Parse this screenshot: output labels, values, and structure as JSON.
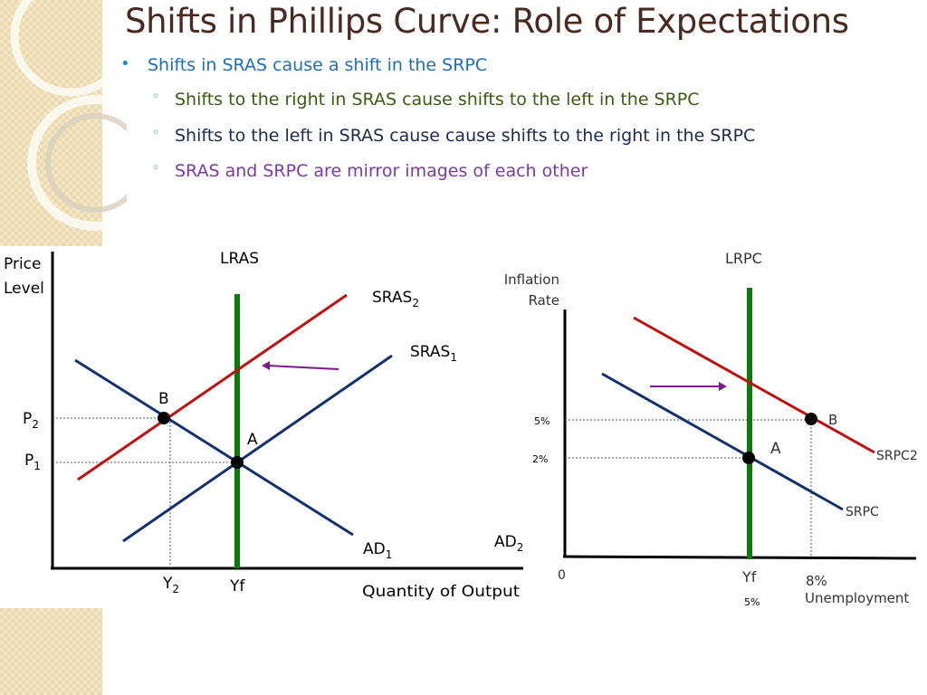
{
  "title": "Shifts in Phillips Curve: Role of Expectations",
  "bullets": {
    "main": "Shifts in SRAS cause a shift in the SRPC",
    "sub": [
      {
        "text": "Shifts to the right in SRAS cause shifts to the left in the SRPC",
        "color": "#3d5a12"
      },
      {
        "text": "Shifts to the left in SRAS cause cause shifts to the right in the SRPC",
        "color": "#1e2a50"
      },
      {
        "text": "SRAS and SRPC are mirror images of each other",
        "color": "#7b3aa8"
      }
    ]
  },
  "left_graph": {
    "y_label_line1": "Price",
    "y_label_line2": "Level",
    "x_label": "Quantity of Output",
    "lras": "LRAS",
    "sras2_main": "SRAS",
    "sras2_sub": "2",
    "sras1_main": "SRAS",
    "sras1_sub": "1",
    "ad1_main": "AD",
    "ad1_sub": "1",
    "ad2_main": "AD",
    "ad2_sub": "2",
    "p2_main": "P",
    "p2_sub": "2",
    "p1_main": "P",
    "p1_sub": "1",
    "y2_main": "Y",
    "y2_sub": "2",
    "yf": "Yf",
    "point_b": "B",
    "point_a": "A"
  },
  "right_graph": {
    "y_label_line1": "Inflation",
    "y_label_line2": "Rate",
    "x_label": "Unemployment",
    "lrpc": "LRPC",
    "srpc2": "SRPC2",
    "srpc": "SRPC",
    "tick_5pct": "5%",
    "tick_2pct": "2%",
    "origin": "0",
    "yf": "Yf",
    "x_5pct": "5%",
    "x_8pct": "8%",
    "point_b": "B",
    "point_a": "A"
  },
  "colors": {
    "red_curve": "#c01010",
    "blue_curve": "#14306e",
    "green_line": "#0a7a0a",
    "arrow": "#7a1a8a"
  }
}
